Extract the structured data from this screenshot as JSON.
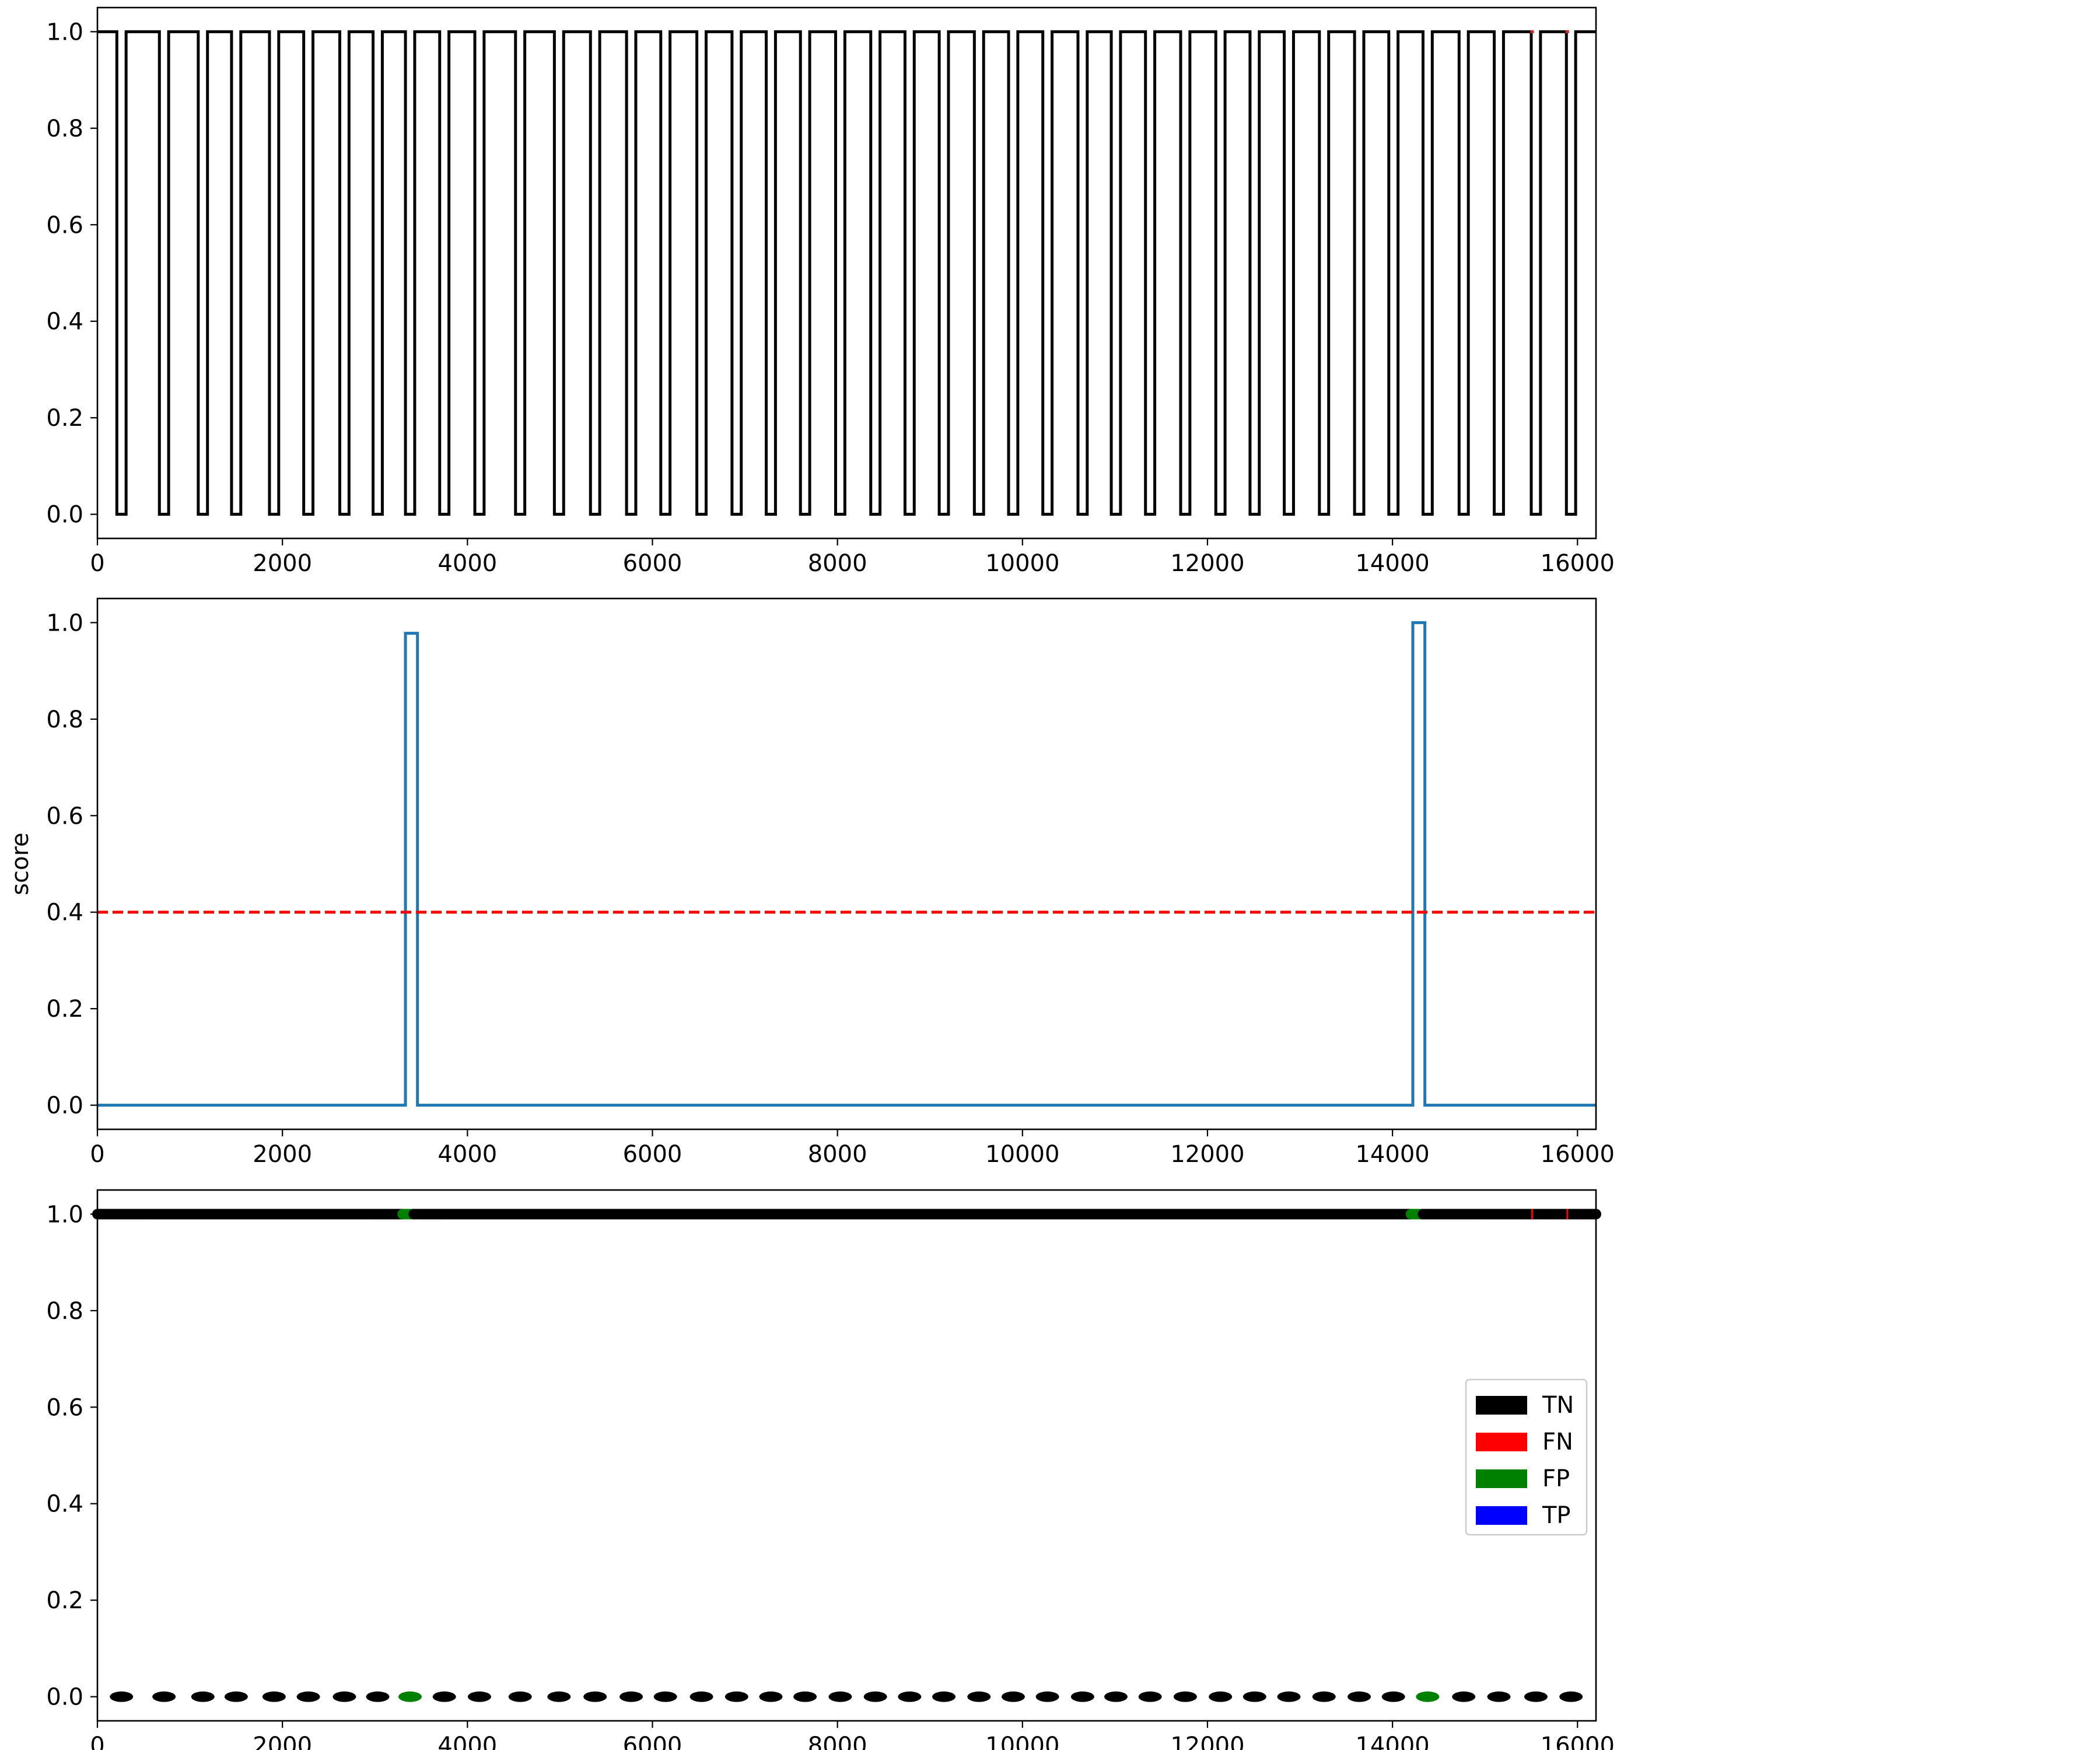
{
  "chart_data": [
    {
      "type": "line",
      "title": "",
      "xlabel": "",
      "ylabel": "",
      "xlim": [
        0,
        16200
      ],
      "ylim": [
        -0.05,
        1.05
      ],
      "xticks": [
        0,
        2000,
        4000,
        6000,
        8000,
        10000,
        12000,
        14000,
        16000
      ],
      "yticks": [
        0.0,
        0.2,
        0.4,
        0.6,
        0.8,
        1.0
      ],
      "grid": false,
      "series": [
        {
          "label": "",
          "color": "#000000",
          "step": true,
          "baseline": 1.0,
          "dips_to": 0.0,
          "dip_width": 100,
          "dip_starts": [
            210,
            670,
            1090,
            1450,
            1860,
            2230,
            2620,
            2980,
            3330,
            3700,
            4080,
            4520,
            4940,
            5330,
            5720,
            6090,
            6480,
            6860,
            7230,
            7600,
            7980,
            8360,
            8730,
            9100,
            9480,
            9850,
            10220,
            10600,
            10960,
            11330,
            11710,
            12090,
            12460,
            12830,
            13210,
            13590,
            13960,
            14330,
            14720,
            15100,
            15500,
            15880
          ]
        },
        {
          "label": "",
          "color": "#d62728",
          "step": true,
          "baseline": 1.0,
          "marks": [
            15510,
            15890
          ]
        }
      ]
    },
    {
      "type": "line",
      "title": "",
      "xlabel": "",
      "ylabel": "score",
      "xlim": [
        0,
        16200
      ],
      "ylim": [
        -0.05,
        1.05
      ],
      "xticks": [
        0,
        2000,
        4000,
        6000,
        8000,
        10000,
        12000,
        14000,
        16000
      ],
      "yticks": [
        0.0,
        0.2,
        0.4,
        0.6,
        0.8,
        1.0
      ],
      "grid": false,
      "series": [
        {
          "label": "",
          "color": "#1f77b4",
          "step": true,
          "x": [
            0,
            3330,
            3330,
            3460,
            3460,
            14220,
            14220,
            14350,
            14350,
            16200
          ],
          "y": [
            0.0,
            0.0,
            0.978,
            0.978,
            0.0,
            0.0,
            1.0,
            1.0,
            0.0,
            0.0
          ]
        }
      ],
      "threshold": {
        "y": 0.4,
        "color": "#ff0000",
        "style": "dashed"
      }
    },
    {
      "type": "scatter",
      "title": "",
      "xlabel": "",
      "ylabel": "",
      "xlim": [
        0,
        16200
      ],
      "ylim": [
        -0.05,
        1.05
      ],
      "xticks": [
        0,
        2000,
        4000,
        6000,
        8000,
        10000,
        12000,
        14000,
        16000
      ],
      "yticks": [
        0.0,
        0.2,
        0.4,
        0.6,
        0.8,
        1.0
      ],
      "grid": false,
      "top_band": {
        "y": 1.0,
        "segments": [
          {
            "class": "TN",
            "x": [
              0,
              3300
            ]
          },
          {
            "class": "FP",
            "x": [
              3300,
              3420
            ]
          },
          {
            "class": "TN",
            "x": [
              3420,
              14200
            ]
          },
          {
            "class": "FP",
            "x": [
              14200,
              14330
            ]
          },
          {
            "class": "TN",
            "x": [
              14330,
              16200
            ]
          }
        ],
        "fn_marks": [
          15510,
          15890
        ]
      },
      "points_y0": [
        {
          "x": 260,
          "class": "TN"
        },
        {
          "x": 720,
          "class": "TN"
        },
        {
          "x": 1140,
          "class": "TN"
        },
        {
          "x": 1500,
          "class": "TN"
        },
        {
          "x": 1910,
          "class": "TN"
        },
        {
          "x": 2280,
          "class": "TN"
        },
        {
          "x": 2670,
          "class": "TN"
        },
        {
          "x": 3030,
          "class": "TN"
        },
        {
          "x": 3380,
          "class": "FP"
        },
        {
          "x": 3750,
          "class": "TN"
        },
        {
          "x": 4130,
          "class": "TN"
        },
        {
          "x": 4570,
          "class": "TN"
        },
        {
          "x": 4990,
          "class": "TN"
        },
        {
          "x": 5380,
          "class": "TN"
        },
        {
          "x": 5770,
          "class": "TN"
        },
        {
          "x": 6140,
          "class": "TN"
        },
        {
          "x": 6530,
          "class": "TN"
        },
        {
          "x": 6910,
          "class": "TN"
        },
        {
          "x": 7280,
          "class": "TN"
        },
        {
          "x": 7650,
          "class": "TN"
        },
        {
          "x": 8030,
          "class": "TN"
        },
        {
          "x": 8410,
          "class": "TN"
        },
        {
          "x": 8780,
          "class": "TN"
        },
        {
          "x": 9150,
          "class": "TN"
        },
        {
          "x": 9530,
          "class": "TN"
        },
        {
          "x": 9900,
          "class": "TN"
        },
        {
          "x": 10270,
          "class": "TN"
        },
        {
          "x": 10650,
          "class": "TN"
        },
        {
          "x": 11010,
          "class": "TN"
        },
        {
          "x": 11380,
          "class": "TN"
        },
        {
          "x": 11760,
          "class": "TN"
        },
        {
          "x": 12140,
          "class": "TN"
        },
        {
          "x": 12510,
          "class": "TN"
        },
        {
          "x": 12880,
          "class": "TN"
        },
        {
          "x": 13260,
          "class": "TN"
        },
        {
          "x": 13640,
          "class": "TN"
        },
        {
          "x": 14010,
          "class": "TN"
        },
        {
          "x": 14380,
          "class": "FP"
        },
        {
          "x": 14770,
          "class": "TN"
        },
        {
          "x": 15150,
          "class": "TN"
        },
        {
          "x": 15550,
          "class": "TN"
        },
        {
          "x": 15930,
          "class": "TN"
        }
      ],
      "legend": {
        "placement": "center-right",
        "entries": [
          {
            "label": "TN",
            "color": "#000000"
          },
          {
            "label": "FN",
            "color": "#ff0000"
          },
          {
            "label": "FP",
            "color": "#008000"
          },
          {
            "label": "TP",
            "color": "#0000ff"
          }
        ]
      }
    }
  ]
}
